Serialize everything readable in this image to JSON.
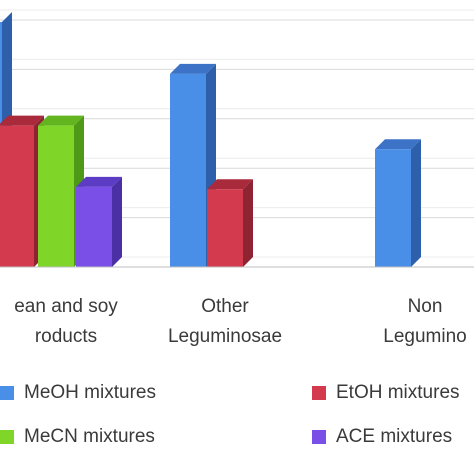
{
  "chart_data": {
    "type": "bar",
    "categories": [
      "Soybean and soy\nproducts",
      "Other\nLeguminosae",
      "Non\nLeguminosae"
    ],
    "categories_visible": [
      "ean and soy\nroducts",
      "Other\nLeguminosae",
      "Non\nLegumino"
    ],
    "series": [
      {
        "name": "MeOH mixtures",
        "color": "#4a8fe7",
        "side": "#2d5fab",
        "top": "#3c73c6",
        "values": [
          null,
          82,
          50
        ]
      },
      {
        "name": "EtOH mixtures",
        "color": "#d33a4d",
        "side": "#8e2332",
        "top": "#a82a3b",
        "values": [
          60,
          33,
          null
        ]
      },
      {
        "name": "MeCN mixtures",
        "color": "#7fd629",
        "side": "#4e9a17",
        "top": "#62b51e",
        "values": [
          60,
          null,
          null
        ]
      },
      {
        "name": "ACE mixtures",
        "color": "#7a4fe8",
        "side": "#4b2fa5",
        "top": "#5d3cc5",
        "values": [
          34,
          null,
          null
        ]
      }
    ],
    "extra_bar": {
      "series": "MeOH mixtures",
      "category": 0,
      "value": 104
    },
    "ylim": [
      0,
      110
    ],
    "grid": true,
    "legend_position": "bottom",
    "legend": [
      "MeOH mixtures",
      "EtOH mixtures",
      "MeCN mixtures",
      "ACE mixtures"
    ]
  }
}
